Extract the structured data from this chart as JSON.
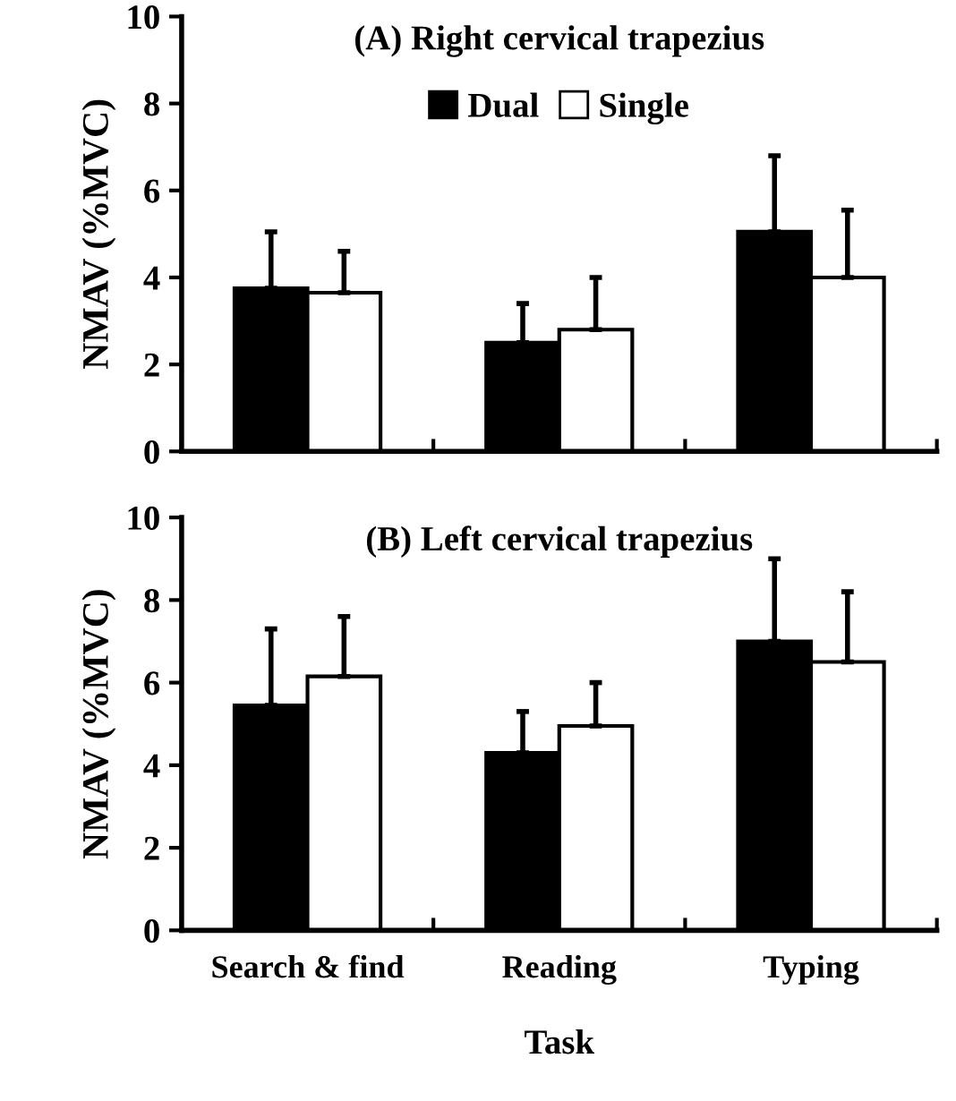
{
  "chart_data": [
    {
      "type": "bar",
      "title": "(A) Right cervical trapezius",
      "ylabel": "NMAV (%MVC)",
      "categories": [
        null,
        null,
        null
      ],
      "ylim": [
        0,
        10
      ],
      "yticks": [
        0,
        2,
        4,
        6,
        8,
        10
      ],
      "legend": "top",
      "grid": false,
      "series": [
        {
          "name": "Dual",
          "color": "#000000",
          "values": [
            3.75,
            2.5,
            5.05
          ],
          "errors": [
            [
              3.75,
              5.05
            ],
            [
              2.5,
              3.4
            ],
            [
              5.05,
              6.8
            ]
          ]
        },
        {
          "name": "Single",
          "color": "#ffffff",
          "values": [
            3.65,
            2.8,
            4.0
          ],
          "errors": [
            [
              3.65,
              4.6
            ],
            [
              2.8,
              4.0
            ],
            [
              4.0,
              5.55
            ]
          ]
        }
      ]
    },
    {
      "type": "bar",
      "title": "(B) Left cervical trapezius",
      "ylabel": "NMAV (%MVC)",
      "xlabel": "Task",
      "categories": [
        "Search & find",
        "Reading",
        "Typing"
      ],
      "ylim": [
        0,
        10
      ],
      "yticks": [
        0,
        2,
        4,
        6,
        8,
        10
      ],
      "grid": false,
      "series": [
        {
          "color": "#000000",
          "values": [
            5.45,
            4.3,
            7.0
          ],
          "errors": [
            [
              5.45,
              7.3
            ],
            [
              4.3,
              5.3
            ],
            [
              7.0,
              9.0
            ]
          ]
        },
        {
          "color": "#ffffff",
          "values": [
            6.15,
            4.95,
            6.5
          ],
          "errors": [
            [
              6.15,
              7.6
            ],
            [
              4.95,
              6.0
            ],
            [
              6.5,
              8.2
            ]
          ]
        }
      ]
    }
  ]
}
